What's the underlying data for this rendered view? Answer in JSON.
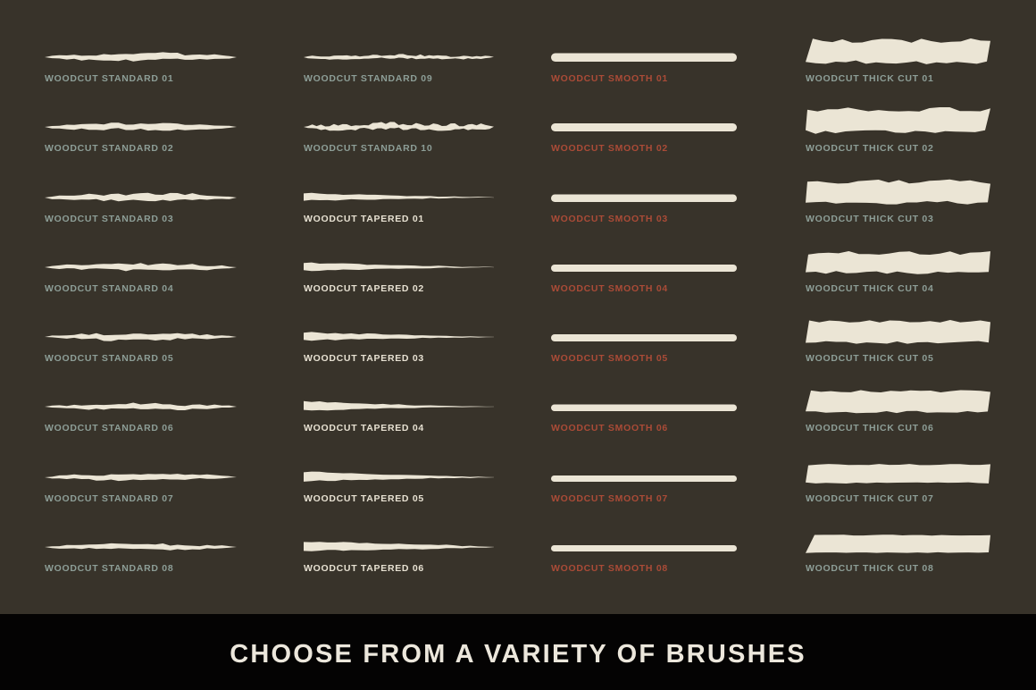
{
  "page": {
    "background_color": "#38332a",
    "brush_color": "#ebe5d5"
  },
  "banner": {
    "label": "CHOOSE FROM A VARIETY OF BRUSHES",
    "background_color": "#040303",
    "text_color": "#ece7dc"
  },
  "label_colors": {
    "standard": "#8d9e97",
    "tapered": "#e7e1d2",
    "smooth": "#aa4b37",
    "thick": "#8d9e97"
  },
  "columns": [
    {
      "name": "woodcut-standard-a",
      "items": [
        {
          "label": "WOODCUT STANDARD 01",
          "type": "standard",
          "label_style": "standard"
        },
        {
          "label": "WOODCUT STANDARD 02",
          "type": "standard",
          "label_style": "standard"
        },
        {
          "label": "WOODCUT STANDARD 03",
          "type": "standard",
          "label_style": "standard"
        },
        {
          "label": "WOODCUT STANDARD 04",
          "type": "standard",
          "label_style": "standard"
        },
        {
          "label": "WOODCUT STANDARD 05",
          "type": "standard",
          "label_style": "standard"
        },
        {
          "label": "WOODCUT STANDARD 06",
          "type": "standard",
          "label_style": "standard"
        },
        {
          "label": "WOODCUT STANDARD 07",
          "type": "standard",
          "label_style": "standard"
        },
        {
          "label": "WOODCUT STANDARD 08",
          "type": "standard",
          "label_style": "standard"
        }
      ]
    },
    {
      "name": "woodcut-standard-b-tapered",
      "items": [
        {
          "label": "WOODCUT STANDARD 09",
          "type": "rough",
          "label_style": "standard"
        },
        {
          "label": "WOODCUT STANDARD 10",
          "type": "rough-heavy",
          "label_style": "standard"
        },
        {
          "label": "WOODCUT TAPERED 01",
          "type": "tapered",
          "label_style": "tapered"
        },
        {
          "label": "WOODCUT TAPERED 02",
          "type": "tapered",
          "label_style": "tapered"
        },
        {
          "label": "WOODCUT TAPERED 03",
          "type": "tapered",
          "label_style": "tapered"
        },
        {
          "label": "WOODCUT TAPERED 04",
          "type": "tapered",
          "label_style": "tapered"
        },
        {
          "label": "WOODCUT TAPERED 05",
          "type": "tapered",
          "label_style": "tapered"
        },
        {
          "label": "WOODCUT TAPERED 06",
          "type": "tapered",
          "label_style": "tapered"
        }
      ]
    },
    {
      "name": "woodcut-smooth",
      "items": [
        {
          "label": "WOODCUT SMOOTH 01",
          "type": "smooth",
          "label_style": "smooth"
        },
        {
          "label": "WOODCUT SMOOTH 02",
          "type": "smooth",
          "label_style": "smooth"
        },
        {
          "label": "WOODCUT SMOOTH 03",
          "type": "smooth",
          "label_style": "smooth"
        },
        {
          "label": "WOODCUT SMOOTH 04",
          "type": "smooth",
          "label_style": "smooth"
        },
        {
          "label": "WOODCUT SMOOTH 05",
          "type": "smooth",
          "label_style": "smooth"
        },
        {
          "label": "WOODCUT SMOOTH 06",
          "type": "smooth",
          "label_style": "smooth"
        },
        {
          "label": "WOODCUT SMOOTH 07",
          "type": "smooth",
          "label_style": "smooth"
        },
        {
          "label": "WOODCUT SMOOTH 08",
          "type": "smooth",
          "label_style": "smooth"
        }
      ]
    },
    {
      "name": "woodcut-thick-cut",
      "items": [
        {
          "label": "WOODCUT THICK CUT 01",
          "type": "thick",
          "label_style": "thick"
        },
        {
          "label": "WOODCUT THICK CUT 02",
          "type": "thick",
          "label_style": "thick"
        },
        {
          "label": "WOODCUT THICK CUT 03",
          "type": "thick",
          "label_style": "thick"
        },
        {
          "label": "WOODCUT THICK CUT 04",
          "type": "thick",
          "label_style": "thick"
        },
        {
          "label": "WOODCUT THICK CUT 05",
          "type": "thick",
          "label_style": "thick"
        },
        {
          "label": "WOODCUT THICK CUT 06",
          "type": "thick",
          "label_style": "thick"
        },
        {
          "label": "WOODCUT THICK CUT 07",
          "type": "thick",
          "label_style": "thick"
        },
        {
          "label": "WOODCUT THICK CUT 08",
          "type": "thick",
          "label_style": "thick"
        }
      ]
    }
  ]
}
